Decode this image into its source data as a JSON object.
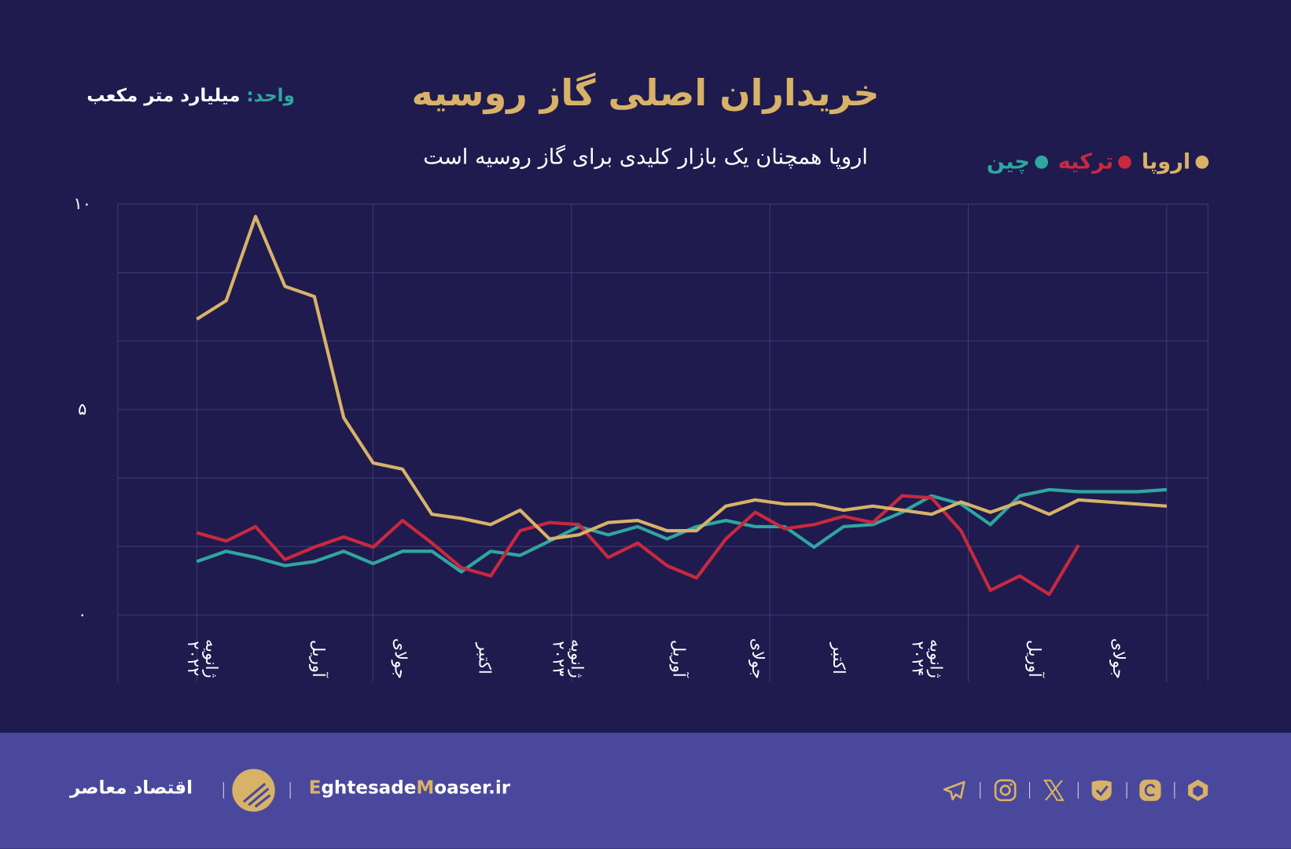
{
  "header": {
    "title": "خریداران اصلی گاز روسیه",
    "subtitle": "اروپا همچنان یک بازار کلیدی برای گاز روسیه است",
    "unit_key": "واحد:",
    "unit_value": "میلیارد متر مکعب"
  },
  "colors": {
    "background": "#1f1b4e",
    "footer": "#4a489c",
    "europe": "#d8b268",
    "turkey": "#c8293f",
    "china": "#2fa6a0"
  },
  "chart_data": {
    "type": "line",
    "title": "خریداران اصلی گاز روسیه",
    "subtitle": "اروپا همچنان یک بازار کلیدی برای گاز روسیه است",
    "ylabel": "واحد: میلیارد متر مکعب",
    "ylim": [
      0,
      10
    ],
    "yticks": [
      "۰",
      "۵",
      "۱۰"
    ],
    "grid": true,
    "legend_position": "top-right",
    "x_start": "ژانویه ۲۰۲۲",
    "x_frequency": "monthly",
    "xtick_labels": [
      [
        "ژانویه",
        "۲۰۲۲"
      ],
      [
        "آوریل",
        ""
      ],
      [
        "جولای",
        ""
      ],
      [
        "اکتبر",
        ""
      ],
      [
        "ژانویه",
        "۲۰۲۳"
      ],
      [
        "آوریل",
        ""
      ],
      [
        "جولای",
        ""
      ],
      [
        "اکتبر",
        ""
      ],
      [
        "ژانویه",
        "۲۰۲۴"
      ],
      [
        "آوریل",
        ""
      ],
      [
        "جولای",
        ""
      ]
    ],
    "series": [
      {
        "name": "اروپا",
        "color": "#d8b268",
        "values": [
          7.2,
          7.65,
          9.7,
          8.0,
          7.75,
          4.8,
          3.7,
          3.55,
          2.45,
          2.35,
          2.2,
          2.55,
          1.85,
          1.95,
          2.25,
          2.3,
          2.05,
          2.05,
          2.65,
          2.8,
          2.7,
          2.7,
          2.55,
          2.65,
          2.55,
          2.45,
          2.75,
          2.5,
          2.75,
          2.45,
          2.8,
          2.75,
          2.7,
          2.65
        ]
      },
      {
        "name": "ترکیه",
        "color": "#c8293f",
        "values": [
          2.0,
          1.8,
          2.15,
          1.35,
          1.65,
          1.9,
          1.65,
          2.3,
          1.75,
          1.15,
          0.95,
          2.05,
          2.25,
          2.2,
          1.4,
          1.75,
          1.2,
          0.9,
          1.85,
          2.5,
          2.1,
          2.2,
          2.4,
          2.25,
          2.9,
          2.85,
          2.05,
          0.6,
          0.95,
          0.5,
          1.7
        ]
      },
      {
        "name": "چین",
        "color": "#2fa6a0",
        "values": [
          1.3,
          1.55,
          1.4,
          1.2,
          1.3,
          1.55,
          1.25,
          1.55,
          1.55,
          1.05,
          1.55,
          1.45,
          1.8,
          2.15,
          1.95,
          2.15,
          1.85,
          2.15,
          2.3,
          2.15,
          2.15,
          1.65,
          2.15,
          2.2,
          2.5,
          2.9,
          2.7,
          2.2,
          2.9,
          3.05,
          3.0,
          3.0,
          3.0,
          3.05
        ]
      }
    ]
  },
  "footer": {
    "brand_fa": "اقتصاد معاصر",
    "site_e": "E",
    "site_mid": "ghtesade",
    "site_m": "M",
    "site_rest": "oaser.ir",
    "social_icons": [
      "telegram-icon",
      "instagram-icon",
      "x-icon",
      "eitaa-icon",
      "bale-icon",
      "rubika-icon"
    ]
  }
}
